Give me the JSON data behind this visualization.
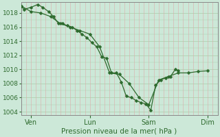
{
  "xlabel": "Pression niveau de la mer( hPa )",
  "bg_color": "#cce8d8",
  "line_color": "#2d6a2d",
  "grid_color_h": "#aaccaa",
  "grid_color_v": "#ddaaaa",
  "tick_label_color": "#2d6a2d",
  "spine_color": "#888888",
  "ylim": [
    1003.5,
    1019.5
  ],
  "ytick_positions": [
    1004,
    1006,
    1008,
    1010,
    1012,
    1014,
    1016,
    1018
  ],
  "xtick_positions": [
    1,
    7,
    13,
    19
  ],
  "xtick_labels": [
    "Ven",
    "Lun",
    "Sam",
    "Dim"
  ],
  "xmin": 0,
  "xmax": 20,
  "line1_x": [
    0.0,
    0.3,
    1.0,
    1.7,
    2.2,
    2.8,
    3.3,
    3.8,
    4.2,
    4.7,
    5.2,
    5.7,
    6.2,
    6.7,
    7.2,
    7.7,
    8.2,
    8.7,
    9.2,
    9.7,
    10.2,
    10.7,
    11.2,
    11.7,
    12.2,
    12.7,
    13.2,
    13.7,
    14.2,
    14.7,
    15.2,
    15.7,
    16.0
  ],
  "line1_y": [
    1019.0,
    1018.5,
    1018.8,
    1019.2,
    1018.8,
    1018.2,
    1017.5,
    1016.5,
    1016.5,
    1016.2,
    1016.0,
    1015.5,
    1015.0,
    1014.5,
    1013.8,
    1013.2,
    1011.8,
    1011.6,
    1009.5,
    1009.5,
    1008.2,
    1006.2,
    1006.0,
    1005.6,
    1005.3,
    1005.1,
    1004.2,
    1007.8,
    1008.5,
    1008.8,
    1009.0,
    1010.0,
    1009.8
  ],
  "line2_x": [
    0.0,
    1.0,
    2.0,
    3.0,
    4.0,
    5.0,
    6.0,
    7.0,
    8.0,
    9.0,
    10.0,
    11.0,
    12.0,
    13.0,
    14.0,
    15.0,
    16.0,
    17.0,
    18.0,
    19.0
  ],
  "line2_y": [
    1019.0,
    1018.2,
    1018.0,
    1017.5,
    1016.5,
    1016.0,
    1015.5,
    1015.0,
    1013.2,
    1009.5,
    1009.3,
    1008.0,
    1006.0,
    1005.0,
    1008.5,
    1009.0,
    1009.5,
    1009.5,
    1009.7,
    1009.8
  ],
  "linewidth": 0.9,
  "markersize": 2.5
}
